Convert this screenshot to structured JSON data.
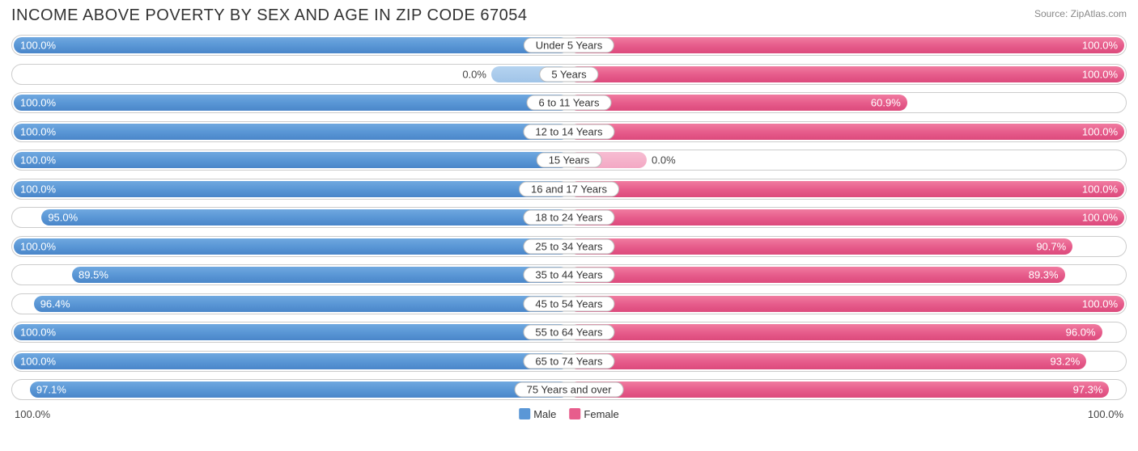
{
  "title": "INCOME ABOVE POVERTY BY SEX AND AGE IN ZIP CODE 67054",
  "source": "Source: ZipAtlas.com",
  "legend": {
    "male": "Male",
    "female": "Female"
  },
  "axis": {
    "left": "100.0%",
    "right": "100.0%"
  },
  "chart": {
    "type": "diverging-bar",
    "max": 100.0,
    "zero_stub_pct": 14,
    "colors": {
      "male_bar": "#5a97d6",
      "male_zero": "#a0c4e8",
      "female_bar": "#e75d8c",
      "female_zero": "#f3a8c4",
      "row_border": "#cccccc",
      "background": "#ffffff",
      "text": "#333333"
    },
    "rows": [
      {
        "label": "Under 5 Years",
        "male": 100.0,
        "female": 100.0
      },
      {
        "label": "5 Years",
        "male": 0.0,
        "female": 100.0
      },
      {
        "label": "6 to 11 Years",
        "male": 100.0,
        "female": 60.9
      },
      {
        "label": "12 to 14 Years",
        "male": 100.0,
        "female": 100.0
      },
      {
        "label": "15 Years",
        "male": 100.0,
        "female": 0.0
      },
      {
        "label": "16 and 17 Years",
        "male": 100.0,
        "female": 100.0
      },
      {
        "label": "18 to 24 Years",
        "male": 95.0,
        "female": 100.0
      },
      {
        "label": "25 to 34 Years",
        "male": 100.0,
        "female": 90.7
      },
      {
        "label": "35 to 44 Years",
        "male": 89.5,
        "female": 89.3
      },
      {
        "label": "45 to 54 Years",
        "male": 96.4,
        "female": 100.0
      },
      {
        "label": "55 to 64 Years",
        "male": 100.0,
        "female": 96.0
      },
      {
        "label": "65 to 74 Years",
        "male": 100.0,
        "female": 93.2
      },
      {
        "label": "75 Years and over",
        "male": 97.1,
        "female": 97.3
      }
    ]
  }
}
